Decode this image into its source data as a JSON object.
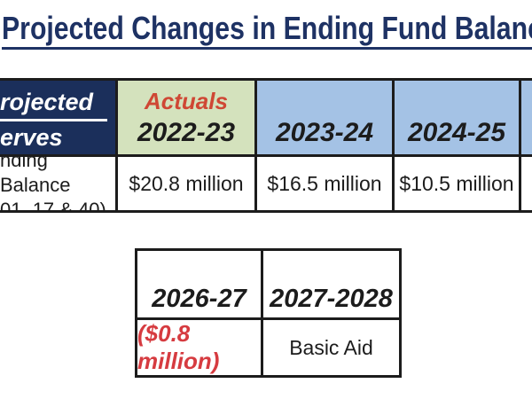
{
  "title": "Projected Changes in Ending Fund Balance",
  "colors": {
    "title_navy": "#1e3264",
    "header_navy_bg": "#1b2f5b",
    "actuals_green_bg": "#d4e2bd",
    "year_blue_bg": "#a4c2e5",
    "actuals_red": "#cf4734",
    "negative_red": "#d63b40",
    "border_black": "#1c1c1c"
  },
  "main_table": {
    "header": {
      "row_label_line1": "rojected",
      "row_label_line2": "erves",
      "actuals_label": "Actuals",
      "actuals_year": "2022-23",
      "years": [
        "2023-24",
        "2024-25"
      ]
    },
    "row": {
      "label_line1": "nding Balance",
      "label_line2": "01, 17 & 40)",
      "values": [
        "$20.8 million",
        "$16.5 million",
        "$10.5 million"
      ]
    }
  },
  "secondary_table": {
    "header_years": [
      "2026-27",
      "2027-2028"
    ],
    "values": [
      "($0.8 million)",
      "Basic Aid"
    ]
  }
}
